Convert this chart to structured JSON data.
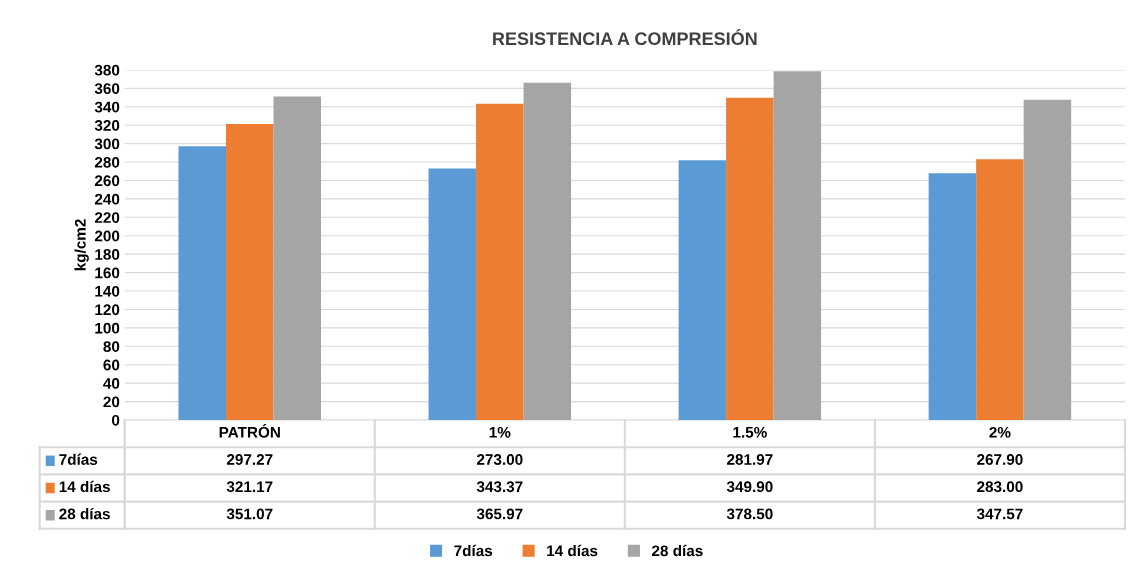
{
  "chart_data": {
    "type": "bar",
    "title": "RESISTENCIA A COMPRESIÓN",
    "ylabel": "kg/cm2",
    "categories": [
      "PATRÓN",
      "1%",
      "1.5%",
      "2%"
    ],
    "series": [
      {
        "name": "7días",
        "color": "#5b9bd5",
        "values": [
          297.27,
          273.0,
          281.97,
          267.9
        ],
        "value_labels": [
          "297.27",
          "273.00",
          "281.97",
          "267.90"
        ]
      },
      {
        "name": "14 días",
        "color": "#ed7d31",
        "values": [
          321.17,
          343.37,
          349.9,
          283.0
        ],
        "value_labels": [
          "321.17",
          "343.37",
          "349.90",
          "283.00"
        ]
      },
      {
        "name": "28 días",
        "color": "#a5a5a5",
        "values": [
          351.07,
          365.97,
          378.5,
          347.57
        ],
        "value_labels": [
          "351.07",
          "365.97",
          "378.50",
          "347.57"
        ]
      }
    ],
    "ylim": [
      0,
      380
    ],
    "yticks": [
      0,
      20,
      40,
      60,
      80,
      100,
      120,
      140,
      160,
      180,
      200,
      220,
      240,
      260,
      280,
      300,
      320,
      340,
      360,
      380
    ],
    "grid": "y",
    "legend": "bottom"
  }
}
